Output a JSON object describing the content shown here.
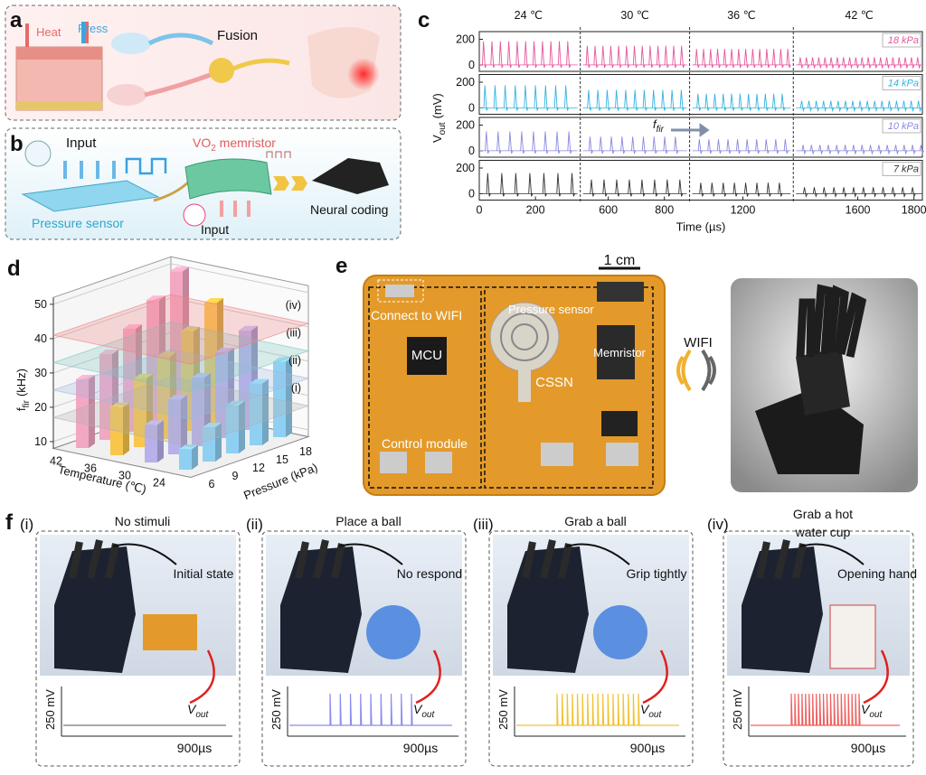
{
  "panel_a": {
    "label": "a",
    "heat": "Heat",
    "press": "Press",
    "fusion": "Fusion"
  },
  "panel_b": {
    "label": "b",
    "input_top": "Input",
    "memristor": {
      "main": "VO",
      "sub": "2",
      "rest": " memristor"
    },
    "pressure_sensor": "Pressure sensor",
    "input_bottom": "Input",
    "neural_coding": "Neural coding"
  },
  "chart_data": [
    {
      "type": "spikes",
      "panel_label": "c",
      "xlabel": "Time (µs)",
      "ylabel": {
        "main": "V",
        "sub": "out",
        "unit": "(mV)"
      },
      "annotation": {
        "main": "f",
        "sub": "fir"
      },
      "segments": [
        {
          "label": "24 ℃",
          "xlim": [
            0,
            350
          ]
        },
        {
          "label": "30 ℃",
          "xlim": [
            510,
            880
          ]
        },
        {
          "label": "36 ℃",
          "xlim": [
            1020,
            1370
          ]
        },
        {
          "label": "42 ℃",
          "xlim": [
            1380,
            1830
          ]
        }
      ],
      "xticks": [
        0,
        200,
        600,
        800,
        1200,
        1600,
        1800
      ],
      "ylim": [
        -50,
        260
      ],
      "yticks": [
        0,
        200
      ],
      "series": [
        {
          "name": "18 kPa",
          "color": "#e8559d",
          "x": [
            [
              15,
              45,
              75,
              105,
              135,
              165,
              195,
              225,
              255,
              285,
              315
            ],
            [
              525,
              553,
              581,
              609,
              637,
              665,
              693,
              721,
              749,
              777,
              805,
              833,
              861
            ],
            [
              1035,
              1060,
              1085,
              1110,
              1135,
              1160,
              1185,
              1210,
              1235,
              1260,
              1285,
              1310,
              1335,
              1360
            ],
            [
              1395,
              1417,
              1439,
              1461,
              1483,
              1505,
              1527,
              1549,
              1571,
              1593,
              1615,
              1637,
              1659,
              1681,
              1703,
              1725,
              1747,
              1769,
              1791,
              1813
            ]
          ],
          "values": [
            185,
            150,
            125,
            60
          ]
        },
        {
          "name": "14 kPa",
          "color": "#35b3e0",
          "x": [
            [
              20,
              56,
              92,
              128,
              164,
              200,
              236,
              272,
              308
            ],
            [
              530,
              563,
              596,
              629,
              662,
              695,
              728,
              761,
              794,
              827,
              860
            ],
            [
              1040,
              1070,
              1100,
              1130,
              1160,
              1190,
              1220,
              1250,
              1280,
              1310,
              1340
            ],
            [
              1400,
              1426,
              1452,
              1478,
              1504,
              1530,
              1556,
              1582,
              1608,
              1634,
              1660,
              1686,
              1712,
              1738,
              1764,
              1790,
              1816
            ]
          ],
          "values": [
            175,
            140,
            110,
            55
          ]
        },
        {
          "name": "10 kPa",
          "color": "#8a8ae0",
          "x": [
            [
              25,
              67,
              109,
              151,
              193,
              235,
              277,
              319
            ],
            [
              535,
              573,
              611,
              649,
              687,
              725,
              763,
              801,
              839
            ],
            [
              1045,
              1079,
              1113,
              1147,
              1181,
              1215,
              1249,
              1283,
              1317,
              1351
            ],
            [
              1405,
              1435,
              1465,
              1495,
              1525,
              1555,
              1585,
              1615,
              1645,
              1675,
              1705,
              1735,
              1765,
              1795,
              1825
            ]
          ],
          "values": [
            150,
            110,
            90,
            45
          ]
        },
        {
          "name": "7 kPa",
          "color": "#333333",
          "x": [
            [
              30,
              80,
              130,
              180,
              230,
              280,
              330
            ],
            [
              540,
              585,
              630,
              675,
              720,
              765,
              810,
              855
            ],
            [
              1050,
              1090,
              1130,
              1170,
              1210,
              1250,
              1290,
              1330
            ],
            [
              1410,
              1445,
              1480,
              1515,
              1550,
              1585,
              1620,
              1655,
              1690,
              1725,
              1760,
              1795
            ]
          ],
          "values": [
            160,
            110,
            85,
            50
          ]
        }
      ]
    },
    {
      "type": "bar3d",
      "panel_label": "d",
      "zlabel": {
        "main": "f",
        "sub": "fir",
        "unit": "(kHz)"
      },
      "xlabel": "Temperature (℃)",
      "ylabel": "Pressure (kPa)",
      "temperature_ticks": [
        24,
        30,
        36,
        42
      ],
      "pressure_ticks": [
        6,
        9,
        12,
        15,
        18
      ],
      "zlim": [
        8,
        52
      ],
      "zticks": [
        10,
        20,
        30,
        40,
        50
      ],
      "series": [
        {
          "color": "#8fd0f2",
          "values": [
            14,
            18,
            22,
            26,
            30
          ]
        },
        {
          "color": "#b7b0ea",
          "values": [
            19,
            24,
            28,
            33,
            37
          ]
        },
        {
          "color": "#f8c64a",
          "values": [
            22,
            28,
            32,
            37,
            43
          ]
        },
        {
          "color": "#f2a7c3",
          "values": [
            28,
            33,
            38,
            44,
            50
          ]
        }
      ],
      "planes": [
        {
          "label": "(i)",
          "value": 17,
          "color": "#b0b0b0"
        },
        {
          "label": "(ii)",
          "value": 25,
          "color": "#9fb8e0"
        },
        {
          "label": "(iii)",
          "value": 33,
          "color": "#7cc7c0"
        },
        {
          "label": "(iv)",
          "value": 41,
          "color": "#f08080"
        }
      ]
    }
  ],
  "panel_e": {
    "label": "e",
    "scale": "1 cm",
    "connect": "Connect to WIFI",
    "mcu": "MCU",
    "control": "Control module",
    "sensor": "Pressure sensor",
    "cssn": "CSSN",
    "memristor": "Memristor",
    "wifi": "WIFI"
  },
  "panel_f": {
    "label": "f",
    "vout": {
      "main": "V",
      "sub": "out"
    },
    "scale_v": "250 mV",
    "scale_t": "900µs",
    "panels": [
      {
        "label": "(i)",
        "title_lines": [
          "No stimuli"
        ],
        "action": "Initial state"
      },
      {
        "label": "(ii)",
        "title_lines": [
          "Place a ball"
        ],
        "action": "No respond"
      },
      {
        "label": "(iii)",
        "title_lines": [
          "Grab a ball"
        ],
        "action": "Grip tightly"
      },
      {
        "label": "(iv)",
        "title_lines": [
          "Grab a hot",
          "water cup"
        ],
        "action": "Opening hand"
      }
    ]
  }
}
